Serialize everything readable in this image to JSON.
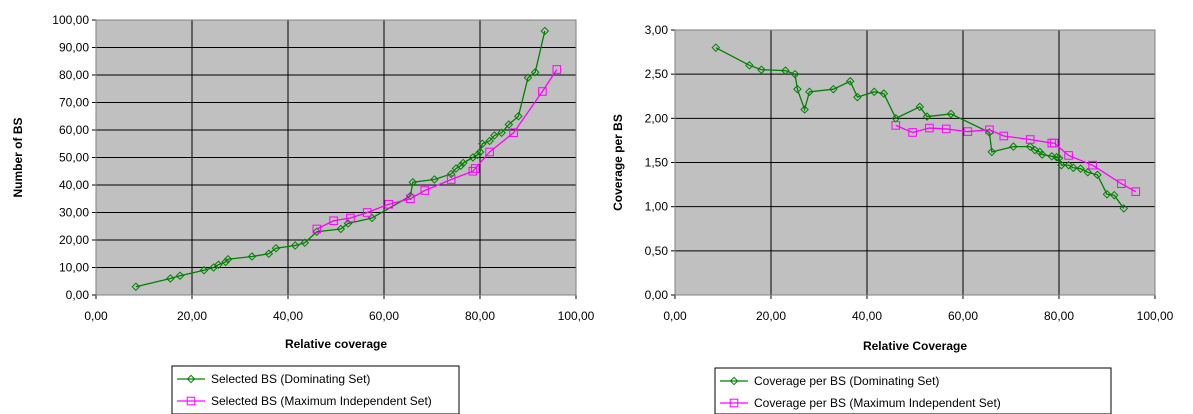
{
  "chart_data": [
    {
      "type": "line",
      "xlabel": "Relative coverage",
      "ylabel": "Number of BS",
      "xlim": [
        0,
        100
      ],
      "ylim": [
        0,
        100
      ],
      "x_ticks": [
        "0,00",
        "20,00",
        "40,00",
        "60,00",
        "80,00",
        "100,00"
      ],
      "y_ticks": [
        "0,00",
        "10,00",
        "20,00",
        "30,00",
        "40,00",
        "50,00",
        "60,00",
        "70,00",
        "80,00",
        "90,00",
        "100,00"
      ],
      "grid": true,
      "legend_position": "bottom",
      "series": [
        {
          "name": "Selected BS (Dominating Set)",
          "color": "#008000",
          "marker": "diamond",
          "points": [
            [
              8.3,
              3
            ],
            [
              15.5,
              6
            ],
            [
              17.5,
              7
            ],
            [
              22.5,
              9
            ],
            [
              24.5,
              10
            ],
            [
              25.5,
              11
            ],
            [
              27,
              12
            ],
            [
              27.5,
              13
            ],
            [
              32.5,
              14
            ],
            [
              36,
              15
            ],
            [
              37.5,
              17
            ],
            [
              41.5,
              18
            ],
            [
              43.5,
              19
            ],
            [
              46,
              23
            ],
            [
              51,
              24
            ],
            [
              52.5,
              26
            ],
            [
              57.5,
              28
            ],
            [
              65.5,
              36
            ],
            [
              66,
              41
            ],
            [
              70.5,
              42
            ],
            [
              74,
              44
            ],
            [
              75,
              46
            ],
            [
              76,
              47
            ],
            [
              76.5,
              48
            ],
            [
              78.5,
              50
            ],
            [
              79.5,
              51
            ],
            [
              80,
              52
            ],
            [
              80.5,
              55
            ],
            [
              82,
              56
            ],
            [
              83,
              58
            ],
            [
              84.5,
              59
            ],
            [
              86,
              62
            ],
            [
              88,
              65
            ],
            [
              90,
              79
            ],
            [
              91.5,
              81
            ],
            [
              93.5,
              96
            ]
          ]
        },
        {
          "name": "Selected BS (Maximum Independent Set)",
          "color": "#ff00ff",
          "marker": "square",
          "points": [
            [
              46,
              24
            ],
            [
              49.5,
              27
            ],
            [
              53,
              28
            ],
            [
              56.5,
              30
            ],
            [
              61,
              33
            ],
            [
              65.5,
              35
            ],
            [
              68.5,
              38
            ],
            [
              74,
              42
            ],
            [
              78.5,
              45
            ],
            [
              79,
              46
            ],
            [
              82,
              52
            ],
            [
              87,
              59
            ],
            [
              93,
              74
            ],
            [
              96,
              82
            ]
          ]
        }
      ]
    },
    {
      "type": "line",
      "xlabel": "Relative Coverage",
      "ylabel": "Coverage per BS",
      "xlim": [
        0,
        100
      ],
      "ylim": [
        0,
        3
      ],
      "x_ticks": [
        "0,00",
        "20,00",
        "40,00",
        "60,00",
        "80,00",
        "100,00"
      ],
      "y_ticks": [
        "0,00",
        "0,50",
        "1,00",
        "1,50",
        "2,00",
        "2,50",
        "3,00"
      ],
      "grid": true,
      "legend_position": "bottom",
      "series": [
        {
          "name": "Coverage per BS (Dominating Set)",
          "color": "#008000",
          "marker": "diamond",
          "points": [
            [
              8.5,
              2.8
            ],
            [
              15.5,
              2.6
            ],
            [
              18,
              2.55
            ],
            [
              23,
              2.54
            ],
            [
              25,
              2.5
            ],
            [
              25.5,
              2.33
            ],
            [
              27,
              2.1
            ],
            [
              28,
              2.3
            ],
            [
              33,
              2.33
            ],
            [
              36.5,
              2.42
            ],
            [
              38,
              2.24
            ],
            [
              41.5,
              2.3
            ],
            [
              43.5,
              2.28
            ],
            [
              46,
              2.0
            ],
            [
              51,
              2.13
            ],
            [
              52.5,
              2.02
            ],
            [
              57.5,
              2.05
            ],
            [
              65.5,
              1.84
            ],
            [
              66,
              1.62
            ],
            [
              70.5,
              1.68
            ],
            [
              74,
              1.68
            ],
            [
              75,
              1.64
            ],
            [
              76,
              1.62
            ],
            [
              76.5,
              1.59
            ],
            [
              78.5,
              1.57
            ],
            [
              79.5,
              1.56
            ],
            [
              80,
              1.55
            ],
            [
              80.5,
              1.47
            ],
            [
              82,
              1.47
            ],
            [
              83,
              1.44
            ],
            [
              84.5,
              1.43
            ],
            [
              86,
              1.39
            ],
            [
              88,
              1.36
            ],
            [
              90,
              1.14
            ],
            [
              91.5,
              1.13
            ],
            [
              93.5,
              0.98
            ]
          ]
        },
        {
          "name": "Coverage per BS (Maximum Independent Set)",
          "color": "#ff00ff",
          "marker": "square",
          "points": [
            [
              46,
              1.92
            ],
            [
              49.5,
              1.84
            ],
            [
              53,
              1.89
            ],
            [
              56.5,
              1.88
            ],
            [
              61,
              1.85
            ],
            [
              65.5,
              1.87
            ],
            [
              68.5,
              1.8
            ],
            [
              74,
              1.76
            ],
            [
              78.5,
              1.72
            ],
            [
              79,
              1.72
            ],
            [
              82,
              1.58
            ],
            [
              87,
              1.47
            ],
            [
              93,
              1.26
            ],
            [
              96,
              1.17
            ]
          ]
        }
      ]
    }
  ]
}
